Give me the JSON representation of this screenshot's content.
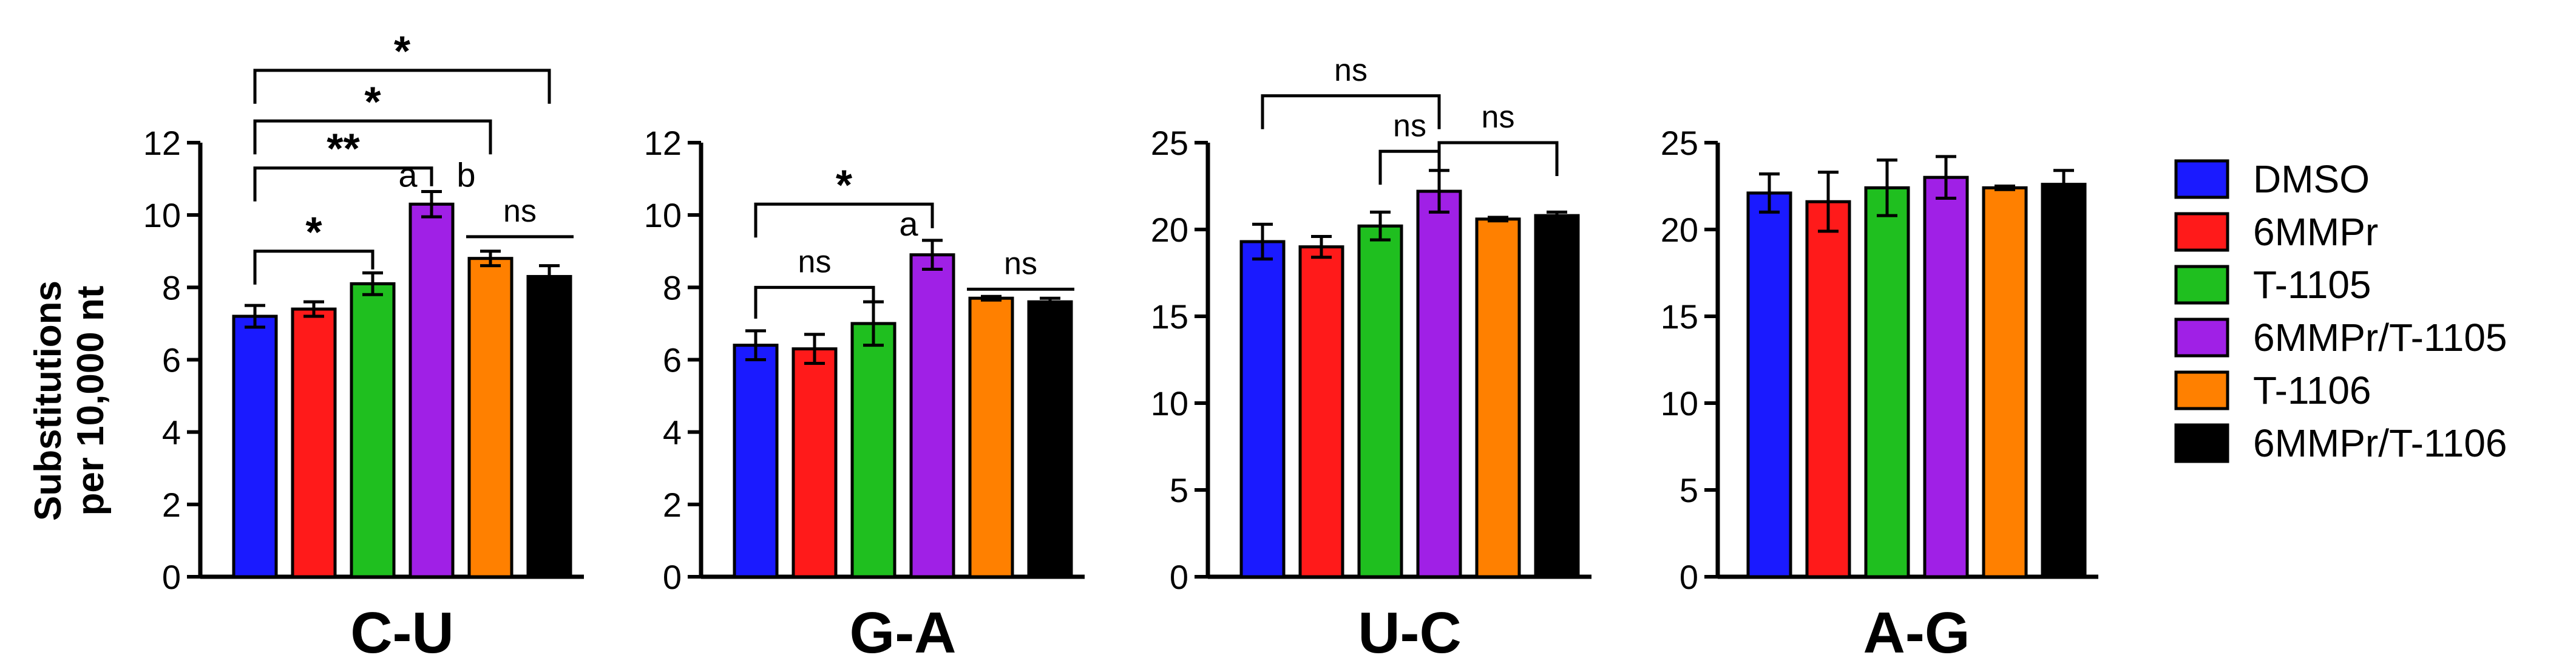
{
  "chart_data": {
    "type": "bar",
    "ylabel_lines": [
      "Substitutions",
      "per 10,000 nt"
    ],
    "colors": [
      "#1a1aff",
      "#ff1a1a",
      "#1fbf1f",
      "#a020e6",
      "#ff8000",
      "#000000"
    ],
    "legend": [
      "DMSO",
      "6MMPr",
      "T-1105",
      "6MMPr/T-1105",
      "T-1106",
      "6MMPr/T-1106"
    ],
    "panels": [
      {
        "title": "C-U",
        "ylim": [
          0,
          12
        ],
        "yticks": [
          0,
          2,
          4,
          6,
          8,
          10,
          12
        ],
        "values": [
          7.2,
          7.4,
          8.1,
          10.3,
          8.8,
          8.3
        ],
        "errors": [
          0.3,
          0.2,
          0.3,
          0.35,
          0.2,
          0.3
        ],
        "letters": [
          {
            "bar": 3,
            "side": "left",
            "text": "a"
          },
          {
            "bar": 3,
            "side": "right",
            "text": "b"
          }
        ],
        "brackets": [
          {
            "from": 0,
            "to": 2,
            "y": 9.0,
            "label": "*"
          },
          {
            "from": 0,
            "to": 3,
            "y": 11.3,
            "label": "**"
          },
          {
            "from": 0,
            "to": 4,
            "y": 12.6,
            "label": "*"
          },
          {
            "from": 0,
            "to": 5,
            "y": 14.0,
            "label": "*"
          },
          {
            "from": 4,
            "to": 5,
            "y": 9.4,
            "label": "ns",
            "line_only": true
          }
        ]
      },
      {
        "title": "G-A",
        "ylim": [
          0,
          12
        ],
        "yticks": [
          0,
          2,
          4,
          6,
          8,
          10,
          12
        ],
        "values": [
          6.4,
          6.3,
          7.0,
          8.9,
          7.7,
          7.6
        ],
        "errors": [
          0.4,
          0.4,
          0.6,
          0.4,
          0.05,
          0.1
        ],
        "letters": [
          {
            "bar": 3,
            "side": "left",
            "text": "a"
          }
        ],
        "brackets": [
          {
            "from": 0,
            "to": 2,
            "y": 8.0,
            "label": "ns"
          },
          {
            "from": 0,
            "to": 3,
            "y": 10.3,
            "label": "*"
          },
          {
            "from": 4,
            "to": 5,
            "y": 7.95,
            "label": "ns",
            "line_only": true
          }
        ]
      },
      {
        "title": "U-C",
        "ylim": [
          0,
          25
        ],
        "yticks": [
          0,
          5,
          10,
          15,
          20,
          25
        ],
        "values": [
          19.3,
          19.0,
          20.2,
          22.2,
          20.6,
          20.8
        ],
        "errors": [
          1.0,
          0.6,
          0.8,
          1.2,
          0.1,
          0.2
        ],
        "letters": [],
        "brackets": [
          {
            "from": 0,
            "to": 3,
            "y": 27.7,
            "label": "ns"
          },
          {
            "from": 2,
            "to": 3,
            "y": 24.5,
            "label": "ns"
          },
          {
            "from": 3,
            "to": 5,
            "y": 25.0,
            "label": "ns"
          }
        ]
      },
      {
        "title": "A-G",
        "ylim": [
          0,
          25
        ],
        "yticks": [
          0,
          5,
          10,
          15,
          20,
          25
        ],
        "values": [
          22.1,
          21.6,
          22.4,
          23.0,
          22.4,
          22.6
        ],
        "errors": [
          1.1,
          1.7,
          1.6,
          1.2,
          0.1,
          0.8
        ],
        "letters": [],
        "brackets": []
      }
    ]
  }
}
